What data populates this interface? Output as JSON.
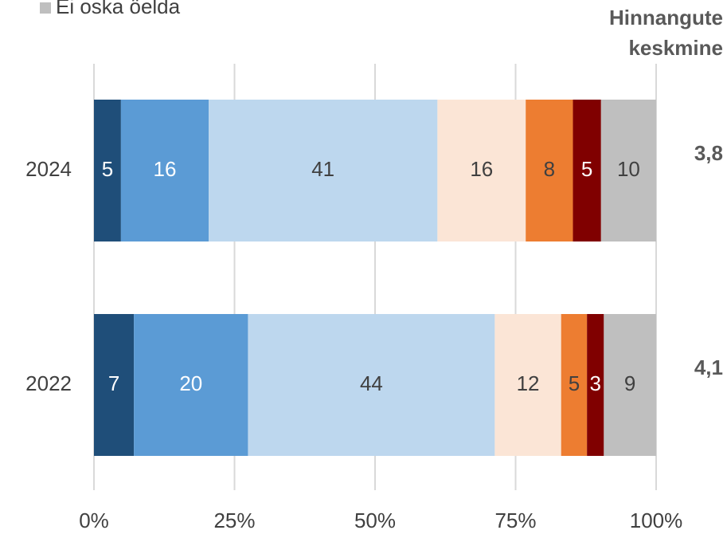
{
  "chart_data": {
    "type": "stacked_barh",
    "categories": [
      "2024",
      "2022"
    ],
    "series": [
      {
        "color": "#1f4e79",
        "label_color": "#ffffff",
        "values": [
          4.8,
          7.1
        ],
        "value_labels": [
          "5",
          "7"
        ]
      },
      {
        "color": "#5b9bd5",
        "label_color": "#ffffff",
        "values": [
          15.6,
          20.3
        ],
        "value_labels": [
          "16",
          "20"
        ]
      },
      {
        "color": "#bdd7ee",
        "label_color": "#404040",
        "values": [
          40.7,
          43.9
        ],
        "value_labels": [
          "41",
          "44"
        ]
      },
      {
        "color": "#fbe5d6",
        "label_color": "#404040",
        "values": [
          15.7,
          11.8
        ],
        "value_labels": [
          "16",
          "12"
        ]
      },
      {
        "color": "#ed7d31",
        "label_color": "#404040",
        "values": [
          8.4,
          4.6
        ],
        "value_labels": [
          "8",
          "5"
        ]
      },
      {
        "color": "#800000",
        "label_color": "#ffffff",
        "values": [
          5.0,
          3.0
        ],
        "value_labels": [
          "5",
          "3"
        ]
      },
      {
        "name": "Ei oska öelda",
        "color": "#bfbfbf",
        "label_color": "#404040",
        "values": [
          9.8,
          9.3
        ],
        "value_labels": [
          "10",
          "9"
        ]
      }
    ],
    "xlim": [
      0,
      100
    ],
    "xticks": [
      {
        "value": 0,
        "label": "0%"
      },
      {
        "value": 25,
        "label": "25%"
      },
      {
        "value": 50,
        "label": "50%"
      },
      {
        "value": 75,
        "label": "75%"
      },
      {
        "value": 100,
        "label": "100%"
      }
    ],
    "grid": true,
    "averages": {
      "title_lines": [
        "Hinnangute",
        "keskmine"
      ],
      "values": [
        3.8,
        4.1
      ],
      "value_labels": [
        "3,8",
        "4,1"
      ]
    }
  }
}
